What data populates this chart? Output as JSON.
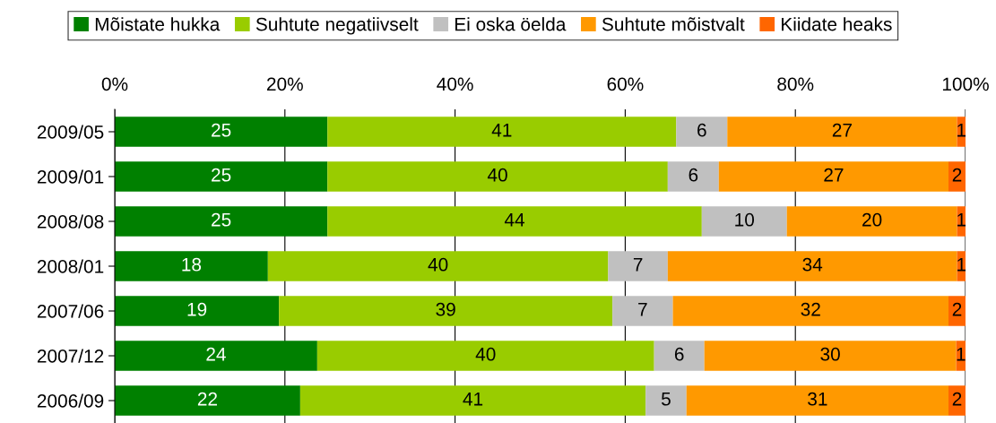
{
  "chart_data": {
    "type": "bar",
    "orientation": "horizontal",
    "stacked": true,
    "legend": "top",
    "grid": "x",
    "categories": [
      "2009/05",
      "2009/01",
      "2008/08",
      "2008/01",
      "2007/06",
      "2007/12",
      "2006/09"
    ],
    "xlim": [
      0,
      100
    ],
    "xticks": [
      {
        "value": 0,
        "label": "0%"
      },
      {
        "value": 20,
        "label": "20%"
      },
      {
        "value": 40,
        "label": "40%"
      },
      {
        "value": 60,
        "label": "60%"
      },
      {
        "value": 80,
        "label": "80%"
      },
      {
        "value": 100,
        "label": "100%"
      }
    ],
    "series": [
      {
        "name": "Mõistate hukka",
        "color": "#008000",
        "values": [
          25,
          25,
          25,
          18,
          19.3,
          23.8,
          21.8
        ],
        "value_labels": [
          "25",
          "25",
          "25",
          "18",
          "19",
          "24",
          "22"
        ]
      },
      {
        "name": "Suhtute negatiivselt",
        "color": "#99cc00",
        "values": [
          41,
          40,
          44,
          40,
          39.2,
          39.6,
          40.6
        ],
        "value_labels": [
          "41",
          "40",
          "44",
          "40",
          "39",
          "40",
          "41"
        ]
      },
      {
        "name": "Ei oska öelda",
        "color": "#c0c0c0",
        "values": [
          6,
          6,
          10,
          7,
          7.1,
          5.9,
          4.8
        ],
        "value_labels": [
          "6",
          "6",
          "10",
          "7",
          "7",
          "6",
          "5"
        ]
      },
      {
        "name": "Suhtute mõistvalt",
        "color": "#ff9900",
        "values": [
          27,
          27,
          20,
          34,
          32.4,
          29.6,
          30.8
        ],
        "value_labels": [
          "27",
          "27",
          "20",
          "34",
          "32",
          "30",
          "31"
        ]
      },
      {
        "name": "Kiidate heaks",
        "color": "#ff6600",
        "values": [
          1,
          2,
          1,
          1,
          2,
          1.1,
          2
        ],
        "value_labels": [
          "1",
          "2",
          "1",
          "1",
          "2",
          "1",
          "2"
        ]
      }
    ]
  }
}
